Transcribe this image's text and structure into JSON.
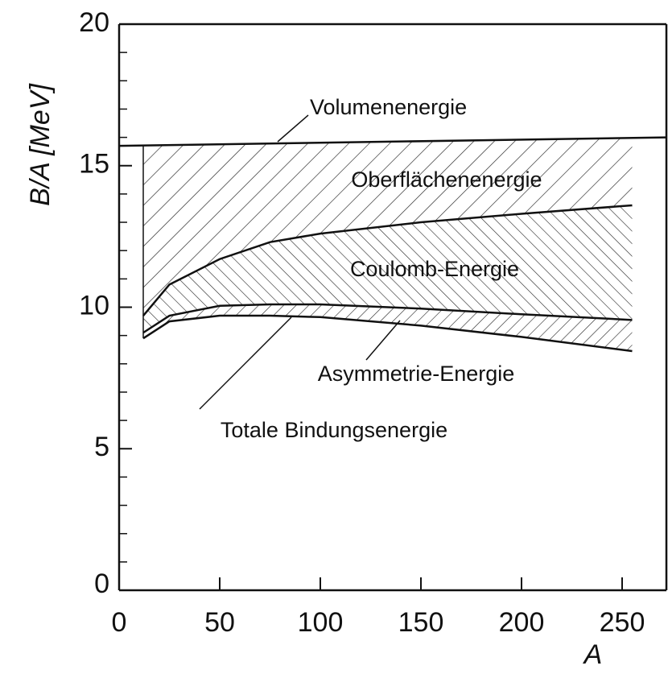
{
  "chart_data": {
    "type": "line",
    "xlabel": "A",
    "ylabel": "B/A [MeV]",
    "xlim": [
      0,
      272
    ],
    "ylim": [
      0,
      20
    ],
    "xticks": [
      0,
      50,
      100,
      150,
      200,
      250
    ],
    "yticks": [
      0,
      5,
      10,
      15,
      20
    ],
    "yminorticks": [
      1,
      2,
      3,
      4,
      6,
      7,
      8,
      9,
      11,
      12,
      13,
      14,
      16,
      17,
      18,
      19
    ],
    "series": [
      {
        "x": [
          0,
          272
        ],
        "values": [
          15.7,
          16.0
        ]
      },
      {
        "x": [
          12,
          25,
          50,
          75,
          100,
          150,
          200,
          255
        ],
        "values": [
          9.7,
          10.8,
          11.7,
          12.3,
          12.6,
          13.0,
          13.3,
          13.6
        ]
      },
      {
        "x": [
          12,
          25,
          50,
          75,
          100,
          150,
          200,
          255
        ],
        "values": [
          9.1,
          9.7,
          10.05,
          10.1,
          10.1,
          9.95,
          9.75,
          9.55
        ]
      },
      {
        "x": [
          12,
          25,
          50,
          75,
          100,
          150,
          200,
          255
        ],
        "values": [
          8.9,
          9.5,
          9.7,
          9.7,
          9.65,
          9.35,
          8.95,
          8.45
        ]
      }
    ],
    "annotations": [
      "Volumenenergie",
      "Oberflächenenergie",
      "Coulomb-Energie",
      "Asymmetrie-Energie",
      "Totale Bindungsenergie"
    ]
  }
}
